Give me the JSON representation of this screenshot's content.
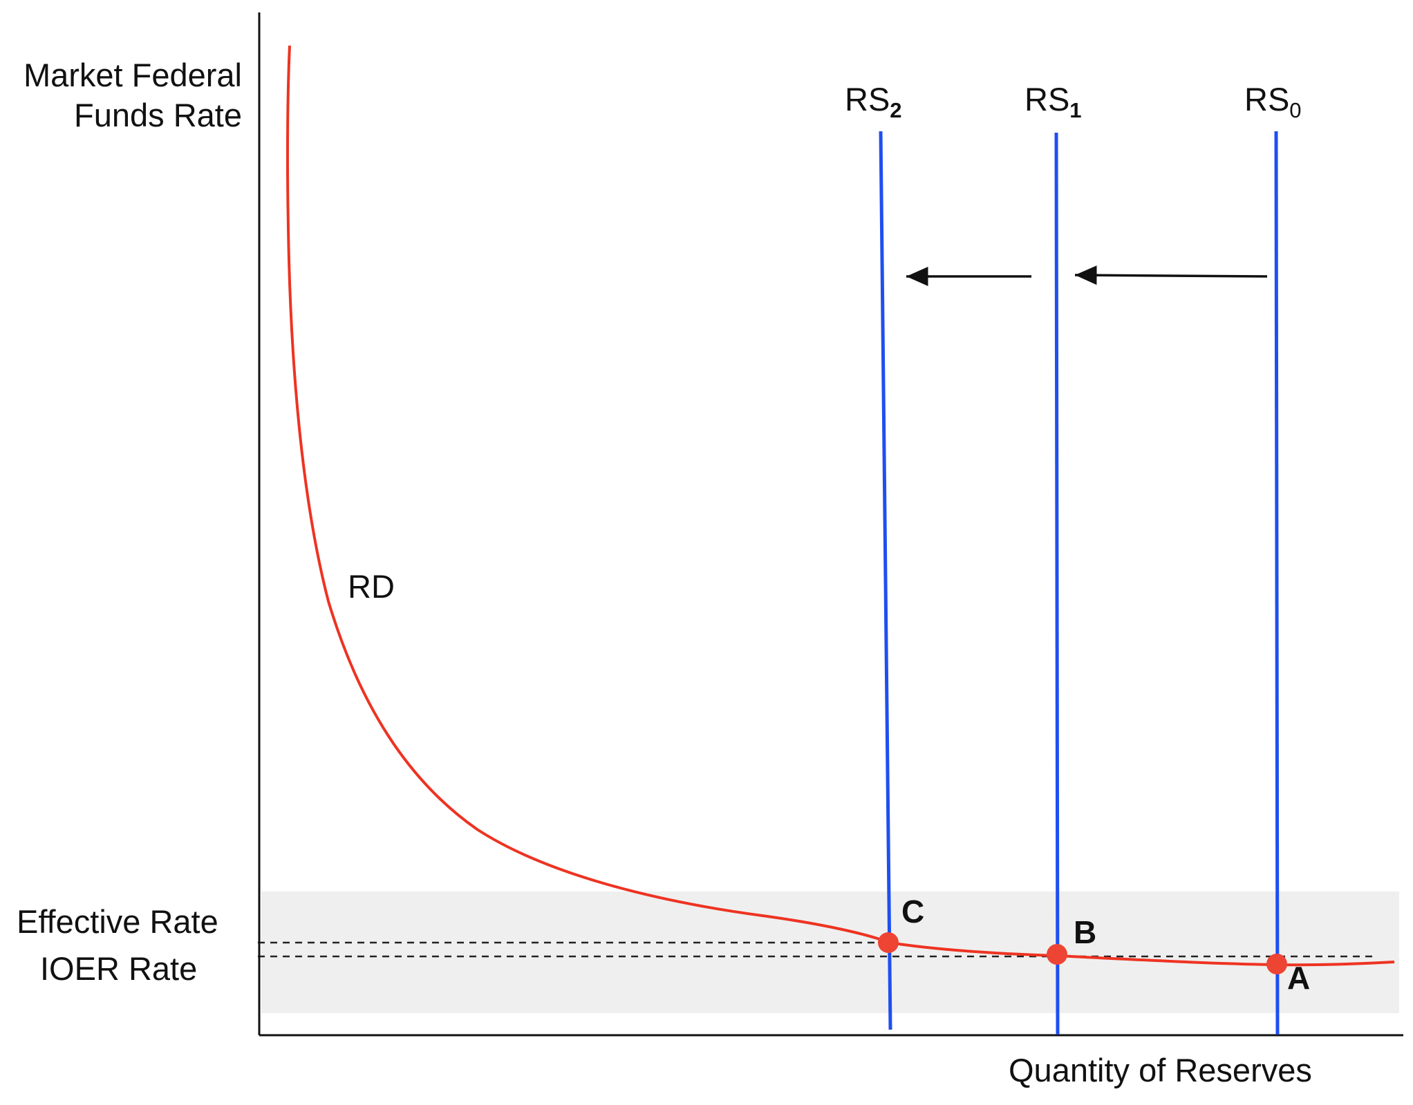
{
  "y_axis_label": [
    "Market Federal",
    "Funds Rate"
  ],
  "x_axis_label": "Quantity of Reserves",
  "effective_rate_label": "Effective Rate",
  "ioer_rate_label": "IOER Rate",
  "demand_curve_label": "RD",
  "supply_curves": [
    {
      "label": "RS",
      "subscript": "2"
    },
    {
      "label": "RS",
      "subscript": "1"
    },
    {
      "label": "RS",
      "subscript": "0"
    }
  ],
  "points": {
    "a": "A",
    "b": "B",
    "c": "C"
  },
  "colors": {
    "demand_curve": "#ee3322",
    "supply_curves": "#1f4ff0",
    "equilibrium_points": "#ee4433",
    "band": "#efefef",
    "axes": "#111111"
  }
}
